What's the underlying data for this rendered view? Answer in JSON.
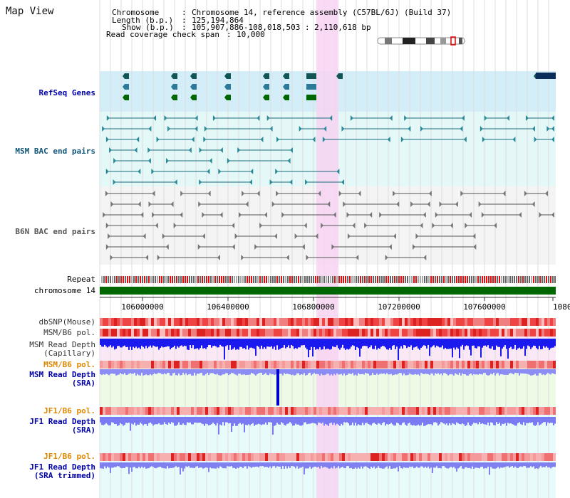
{
  "header": {
    "title": "Map View",
    "chromosome_label": "Chromosome",
    "chromosome_value": "Chromosome 14, reference assembly (C57BL/6J) (Build 37)",
    "length_label": "Length (b.p.)",
    "length_value": "125,194,864",
    "show_label": "Show (b.p.)",
    "show_value": "105,907,886-108,018,503 : 2,110,618 bp",
    "coverage_label": "Read coverage check span",
    "coverage_value": "10,000"
  },
  "tracks": {
    "refseq": "RefSeq Genes",
    "msm_bac": "MSM BAC end pairs",
    "b6n_bac": "B6N BAC end pairs",
    "repeat": "Repeat",
    "chromosome": "chromosome 14",
    "dbsnp": "dbSNP(Mouse)",
    "msm_b6_pol_1": "MSM/B6 pol.",
    "msm_depth_cap_1": "MSM Read Depth",
    "msm_depth_cap_2": "(Capillary)",
    "msm_b6_pol_2": "MSM/B6 pol.",
    "msm_depth_sra_1": "MSM Read Depth",
    "msm_depth_sra_2": "(SRA)",
    "jf1_b6_pol_1": "JF1/B6 pol.",
    "jf1_depth_sra_1": "JF1 Read Depth",
    "jf1_depth_sra_2": "(SRA)",
    "jf1_b6_pol_2": "JF1/B6 pol.",
    "jf1_depth_trim_1": "JF1 Read Depth",
    "jf1_depth_trim_2": "(SRA trimmed)"
  },
  "axis": {
    "ticks": [
      "106000000",
      "106400000",
      "106800000",
      "107200000",
      "107600000",
      "1080"
    ]
  },
  "colors": {
    "refseq_bg": "#d4eef9",
    "msm_bg": "#e4f8f8",
    "b6n_bg": "#f4f4f4",
    "highlight": "#f7d3f2",
    "chromosome_bar": "#006600",
    "depth_blue": "#1a1aee",
    "depth_light": "#8c8cf5",
    "pol_red": "#ee3333",
    "label_blue": "#0000aa",
    "label_teal": "#115577",
    "label_orange": "#dd8800"
  }
}
